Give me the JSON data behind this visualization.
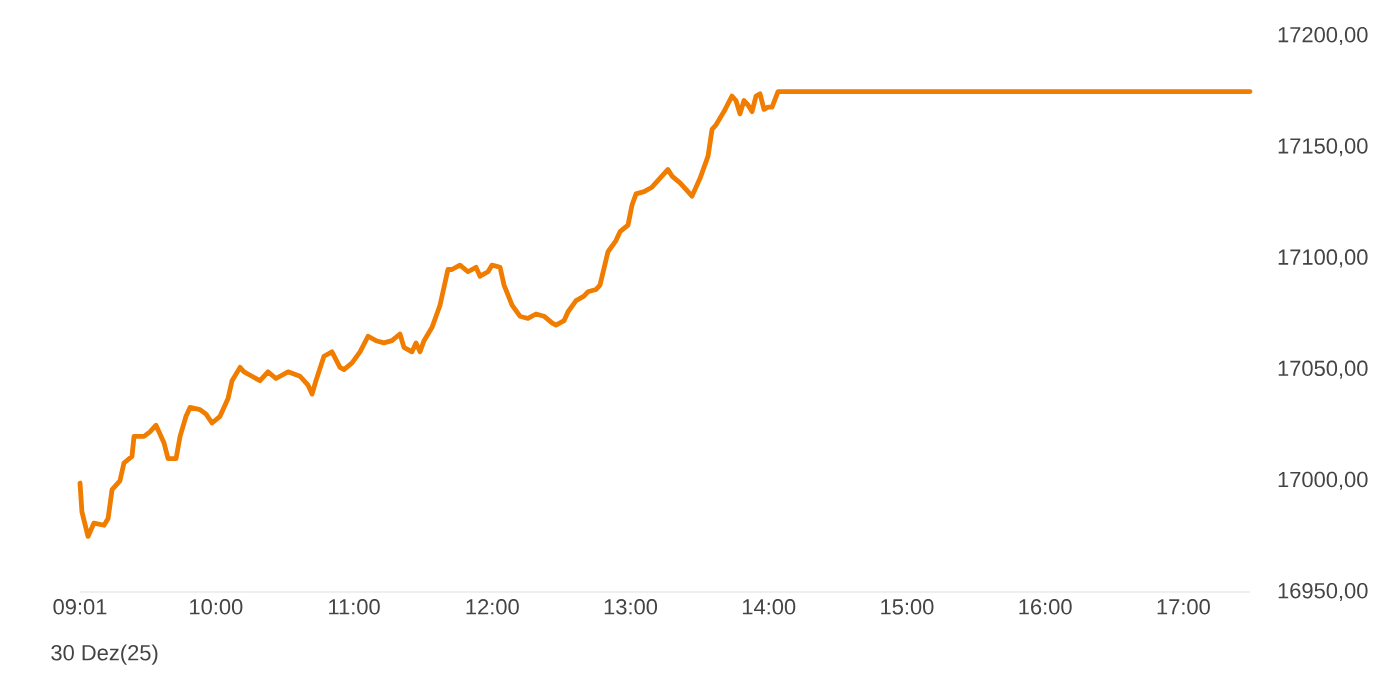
{
  "chart_data": {
    "type": "line",
    "xlim": [
      9.017,
      17.482
    ],
    "ylim": [
      16950,
      17200
    ],
    "xticks": [
      {
        "value": 9.017,
        "label": "09:01"
      },
      {
        "value": 10,
        "label": "10:00"
      },
      {
        "value": 11,
        "label": "11:00"
      },
      {
        "value": 12,
        "label": "12:00"
      },
      {
        "value": 13,
        "label": "13:00"
      },
      {
        "value": 14,
        "label": "14:00"
      },
      {
        "value": 15,
        "label": "15:00"
      },
      {
        "value": 16,
        "label": "16:00"
      },
      {
        "value": 17,
        "label": "17:00"
      }
    ],
    "yticks": [
      {
        "value": 16950,
        "label": "16950,00"
      },
      {
        "value": 17000,
        "label": "17000,00"
      },
      {
        "value": 17050,
        "label": "17050,00"
      },
      {
        "value": 17100,
        "label": "17100,00"
      },
      {
        "value": 17150,
        "label": "17150,00"
      },
      {
        "value": 17200,
        "label": "17200,00"
      }
    ],
    "annotations": [
      "30 Dez(25)"
    ],
    "series": [
      {
        "color": "#f07c00",
        "x": [
          9.017,
          9.031,
          9.075,
          9.118,
          9.191,
          9.22,
          9.249,
          9.306,
          9.335,
          9.393,
          9.408,
          9.48,
          9.523,
          9.567,
          9.625,
          9.654,
          9.712,
          9.741,
          9.784,
          9.813,
          9.885,
          9.929,
          9.972,
          10.03,
          10.088,
          10.117,
          10.175,
          10.204,
          10.261,
          10.319,
          10.377,
          10.435,
          10.522,
          10.609,
          10.667,
          10.696,
          10.724,
          10.782,
          10.84,
          10.898,
          10.927,
          10.985,
          11.043,
          11.101,
          11.159,
          11.216,
          11.274,
          11.332,
          11.361,
          11.419,
          11.448,
          11.477,
          11.506,
          11.564,
          11.593,
          11.622,
          11.679,
          11.708,
          11.766,
          11.824,
          11.882,
          11.911,
          11.969,
          11.998,
          12.056,
          12.085,
          12.143,
          12.2,
          12.258,
          12.316,
          12.374,
          12.432,
          12.461,
          12.519,
          12.548,
          12.606,
          12.663,
          12.692,
          12.75,
          12.779,
          12.837,
          12.895,
          12.924,
          12.982,
          13.011,
          13.04,
          13.098,
          13.155,
          13.271,
          13.3,
          13.358,
          13.416,
          13.445,
          13.503,
          13.561,
          13.59,
          13.618,
          13.676,
          13.734,
          13.763,
          13.792,
          13.821,
          13.85,
          13.879,
          13.908,
          13.937,
          13.966,
          13.995,
          14.024,
          14.067,
          17.482
        ],
        "values": [
          16999,
          16986,
          16975,
          16981,
          16980,
          16983,
          16996,
          17000,
          17008,
          17011,
          17020,
          17020,
          17022,
          17025,
          17017,
          17010,
          17010,
          17020,
          17029,
          17033,
          17032,
          17030,
          17026,
          17029,
          17037,
          17045,
          17051,
          17049,
          17047,
          17045,
          17049,
          17046,
          17049,
          17047,
          17043,
          17039,
          17045,
          17056,
          17058,
          17051,
          17050,
          17053,
          17058,
          17065,
          17063,
          17062,
          17063,
          17066,
          17060,
          17058,
          17062,
          17058,
          17063,
          17069,
          17074,
          17079,
          17095,
          17095,
          17097,
          17094,
          17096,
          17092,
          17094,
          17097,
          17096,
          17088,
          17079,
          17074,
          17073,
          17075,
          17074,
          17071,
          17070,
          17072,
          17076,
          17081,
          17083,
          17085,
          17086,
          17088,
          17103,
          17108,
          17112,
          17115,
          17124,
          17129,
          17130,
          17132,
          17140,
          17137,
          17134,
          17130,
          17128,
          17136,
          17146,
          17158,
          17160,
          17166,
          17173,
          17171,
          17165,
          17171,
          17169,
          17166,
          17173,
          17174,
          17167,
          17168,
          17168,
          17175,
          17175
        ]
      }
    ]
  }
}
